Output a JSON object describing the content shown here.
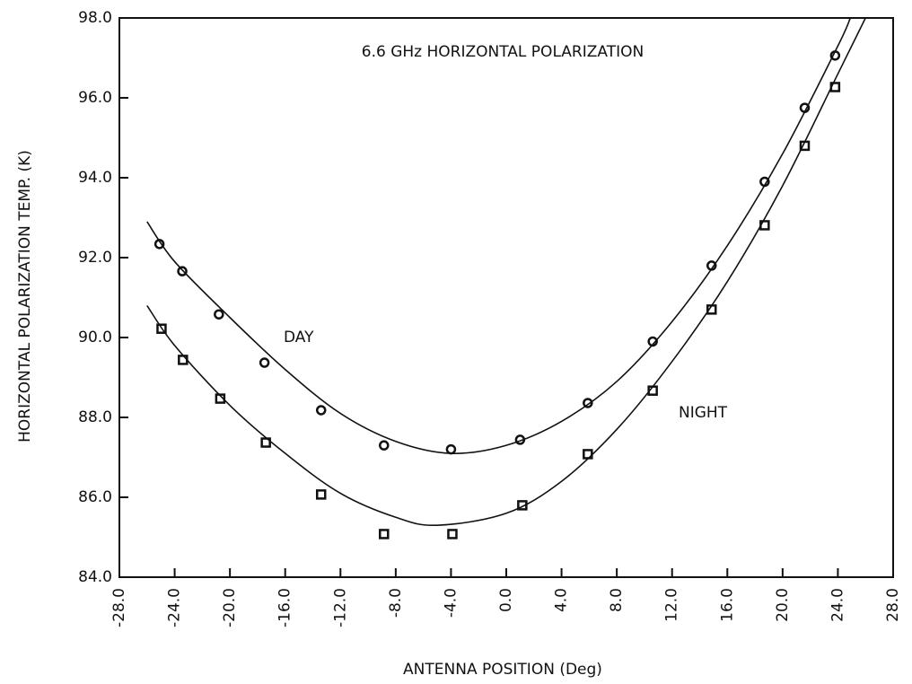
{
  "chart_data": {
    "type": "scatter",
    "title": "6.6 GHz HORIZONTAL POLARIZATION",
    "x_label": "ANTENNA POSITION (Deg)",
    "y_label": "HORIZONTAL POLARIZATION TEMP. (K)",
    "color": "#111111",
    "xlim": [
      -28,
      28
    ],
    "ylim": [
      84,
      98
    ],
    "xticks": [
      {
        "value": -28,
        "label": "-28.0"
      },
      {
        "value": -24,
        "label": "-24.0"
      },
      {
        "value": -20,
        "label": "-20.0"
      },
      {
        "value": -16,
        "label": "-16.0"
      },
      {
        "value": -12,
        "label": "-12.0"
      },
      {
        "value": -8,
        "label": "-8.0"
      },
      {
        "value": -4,
        "label": "-4.0"
      },
      {
        "value": 0,
        "label": "0.0"
      },
      {
        "value": 4,
        "label": "4.0"
      },
      {
        "value": 8,
        "label": "8.0"
      },
      {
        "value": 12,
        "label": "12.0"
      },
      {
        "value": 16,
        "label": "16.0"
      },
      {
        "value": 20,
        "label": "20.0"
      },
      {
        "value": 24,
        "label": "24.0"
      },
      {
        "value": 28,
        "label": "28.0"
      }
    ],
    "yticks": [
      {
        "value": 84,
        "label": "84.0"
      },
      {
        "value": 86,
        "label": "86.0"
      },
      {
        "value": 88,
        "label": "88.0"
      },
      {
        "value": 90,
        "label": "90.0"
      },
      {
        "value": 92,
        "label": "92.0"
      },
      {
        "value": 94,
        "label": "94.0"
      },
      {
        "value": 96,
        "label": "96.0"
      },
      {
        "value": 98,
        "label": "98.0"
      }
    ],
    "series": [
      {
        "name": "DAY",
        "marker": "circle",
        "x": [
          -25.1,
          -23.45,
          -20.8,
          -17.5,
          -13.4,
          -8.85,
          -4.0,
          1.0,
          5.9,
          10.6,
          14.86,
          18.7,
          21.6,
          23.8
        ],
        "values": [
          92.34,
          91.66,
          90.58,
          89.37,
          88.18,
          87.3,
          87.2,
          87.44,
          88.36,
          89.9,
          91.8,
          93.9,
          95.75,
          97.06
        ],
        "curve": {
          "x": [
            -26,
            -24,
            -20,
            -16,
            -12,
            -8,
            -4,
            0,
            4,
            8,
            12,
            16,
            20,
            24,
            24.9
          ],
          "values": [
            92.9,
            91.9,
            90.5,
            89.2,
            88.1,
            87.4,
            87.1,
            87.3,
            87.9,
            88.9,
            90.4,
            92.3,
            94.6,
            97.3,
            98.0
          ]
        }
      },
      {
        "name": "NIGHT",
        "marker": "square",
        "x": [
          -24.95,
          -23.4,
          -20.7,
          -17.4,
          -13.4,
          -8.85,
          -3.9,
          1.16,
          5.9,
          10.6,
          14.86,
          18.7,
          21.6,
          23.8
        ],
        "values": [
          90.22,
          89.44,
          88.47,
          87.37,
          86.07,
          85.08,
          85.08,
          85.8,
          87.08,
          88.67,
          90.7,
          92.81,
          94.8,
          96.27
        ],
        "curve": {
          "x": [
            -26,
            -24,
            -20,
            -16,
            -12,
            -8,
            -5,
            0,
            4,
            8,
            12,
            16,
            20,
            24,
            26
          ],
          "values": [
            90.8,
            89.8,
            88.3,
            87.1,
            86.1,
            85.5,
            85.3,
            85.6,
            86.4,
            87.7,
            89.4,
            91.4,
            93.8,
            96.6,
            98.0
          ]
        }
      }
    ]
  }
}
